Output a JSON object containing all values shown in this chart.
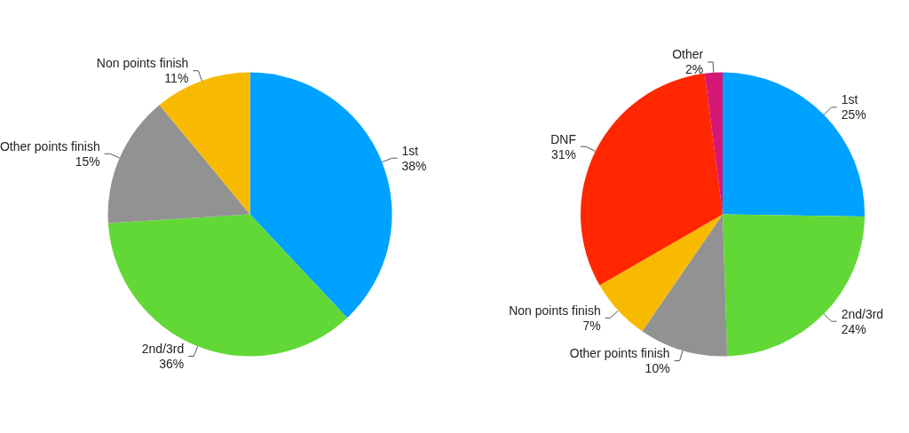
{
  "chart_data": [
    {
      "type": "pie",
      "categories": [
        "1st",
        "2nd/3rd",
        "Other points finish",
        "Non points finish"
      ],
      "values": [
        38,
        36,
        15,
        11
      ],
      "value_labels": [
        "38%",
        "36%",
        "15%",
        "11%"
      ],
      "colors": [
        "#00a2ff",
        "#61d836",
        "#929292",
        "#f8ba00"
      ]
    },
    {
      "type": "pie",
      "categories": [
        "1st",
        "2nd/3rd",
        "Other points finish",
        "Non points finish",
        "DNF",
        "Other"
      ],
      "values": [
        25,
        24,
        10,
        7,
        31,
        2
      ],
      "value_labels": [
        "25%",
        "24%",
        "10%",
        "7%",
        "31%",
        "2%"
      ],
      "colors": [
        "#00a2ff",
        "#61d836",
        "#929292",
        "#f8ba00",
        "#ff2600",
        "#d31876"
      ]
    }
  ]
}
